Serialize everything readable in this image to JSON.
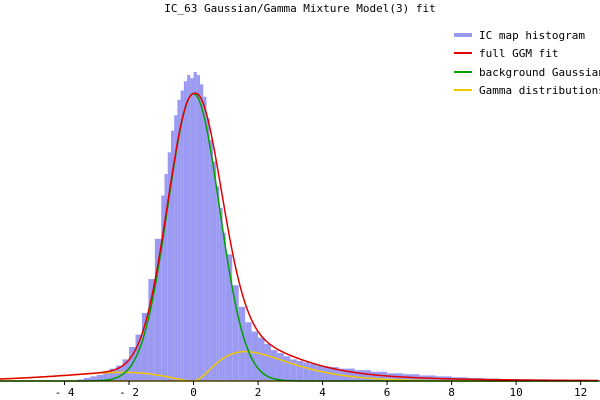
{
  "chart_data": {
    "type": "line",
    "title": "IC_63 Gaussian/Gamma Mixture Model(3) fit",
    "xlabel": "",
    "ylabel": "",
    "xlim": [
      -6,
      12.6
    ],
    "ylim": [
      0,
      1.0
    ],
    "x_ticks": [
      -4,
      -2,
      0,
      2,
      4,
      6,
      8,
      10,
      12
    ],
    "x_tick_labels": [
      "- 4",
      "- 2",
      "0",
      "2",
      "4",
      "6",
      "8",
      "10",
      "12"
    ],
    "grid": false,
    "legend_position": "top-right",
    "series": [
      {
        "name": "IC map histogram",
        "kind": "histogram",
        "color": "#9a9af2",
        "x": [
          -3.6,
          -3.4,
          -3.2,
          -3.0,
          -2.8,
          -2.6,
          -2.4,
          -2.2,
          -2.0,
          -1.8,
          -1.6,
          -1.4,
          -1.2,
          -1.0,
          -0.9,
          -0.8,
          -0.7,
          -0.6,
          -0.5,
          -0.4,
          -0.3,
          -0.2,
          -0.1,
          0.0,
          0.1,
          0.2,
          0.3,
          0.4,
          0.5,
          0.6,
          0.7,
          0.8,
          0.9,
          1.0,
          1.2,
          1.4,
          1.6,
          1.8,
          2.0,
          2.2,
          2.4,
          2.6,
          2.8,
          3.0,
          3.2,
          3.4,
          3.6,
          3.8,
          4.0,
          4.5,
          5.0,
          5.5,
          6.0,
          6.5,
          7.0,
          7.5,
          8.0,
          8.5,
          9.0,
          9.5,
          10.0,
          10.5,
          11.0,
          11.5,
          12.0,
          12.5
        ],
        "values": [
          0.005,
          0.01,
          0.015,
          0.02,
          0.03,
          0.04,
          0.05,
          0.07,
          0.11,
          0.15,
          0.22,
          0.33,
          0.46,
          0.6,
          0.67,
          0.74,
          0.81,
          0.86,
          0.91,
          0.94,
          0.97,
          0.99,
          0.98,
          1.0,
          0.99,
          0.96,
          0.92,
          0.85,
          0.78,
          0.71,
          0.63,
          0.56,
          0.48,
          0.41,
          0.31,
          0.24,
          0.19,
          0.16,
          0.14,
          0.12,
          0.1,
          0.09,
          0.08,
          0.07,
          0.065,
          0.06,
          0.055,
          0.05,
          0.045,
          0.04,
          0.035,
          0.03,
          0.025,
          0.022,
          0.018,
          0.015,
          0.012,
          0.01,
          0.008,
          0.006,
          0.005,
          0.004,
          0.003,
          0.002,
          0.002,
          0.001
        ]
      },
      {
        "name": "full GGM fit",
        "kind": "line",
        "color": "#e00000"
      },
      {
        "name": "background Gaussian",
        "kind": "line",
        "color": "#00a000"
      },
      {
        "name": "Gamma distributions",
        "kind": "line",
        "color": "#f0c800"
      }
    ]
  }
}
